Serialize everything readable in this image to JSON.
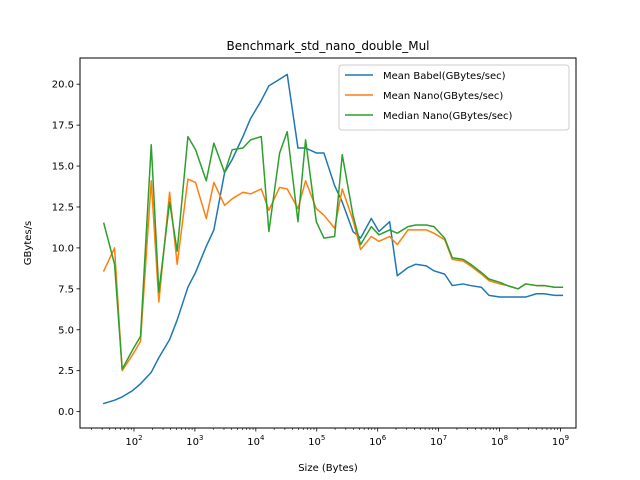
{
  "chart_data": {
    "type": "line",
    "title": "Benchmark_std_nano_double_Mul",
    "xlabel": "Size (Bytes)",
    "ylabel": "GBytes/s",
    "xscale": "log",
    "xlim": [
      13,
      1800000000
    ],
    "ylim": [
      -1.0,
      21.6
    ],
    "x_ticks": [
      {
        "value": 100,
        "base": "10",
        "exp": "2"
      },
      {
        "value": 1000,
        "base": "10",
        "exp": "3"
      },
      {
        "value": 10000,
        "base": "10",
        "exp": "4"
      },
      {
        "value": 100000,
        "base": "10",
        "exp": "5"
      },
      {
        "value": 1000000,
        "base": "10",
        "exp": "6"
      },
      {
        "value": 10000000,
        "base": "10",
        "exp": "7"
      },
      {
        "value": 100000000,
        "base": "10",
        "exp": "8"
      },
      {
        "value": 1000000000,
        "base": "10",
        "exp": "9"
      }
    ],
    "y_ticks": [
      "0.0",
      "2.5",
      "5.0",
      "7.5",
      "10.0",
      "12.5",
      "15.0",
      "17.5",
      "20.0"
    ],
    "grid": false,
    "legend_position": "top-right",
    "series": [
      {
        "name": "Mean Babel(GBytes/sec)",
        "color": "#1f77b4",
        "points": [
          [
            32,
            0.5
          ],
          [
            48,
            0.7
          ],
          [
            64,
            0.9
          ],
          [
            96,
            1.3
          ],
          [
            128,
            1.7
          ],
          [
            192,
            2.4
          ],
          [
            256,
            3.3
          ],
          [
            384,
            4.4
          ],
          [
            512,
            5.6
          ],
          [
            768,
            7.6
          ],
          [
            1024,
            8.5
          ],
          [
            1536,
            10.1
          ],
          [
            2048,
            11.1
          ],
          [
            3072,
            14.6
          ],
          [
            4096,
            15.4
          ],
          [
            6144,
            16.8
          ],
          [
            8192,
            17.9
          ],
          [
            12288,
            19.0
          ],
          [
            16384,
            19.9
          ],
          [
            24576,
            20.3
          ],
          [
            32768,
            20.6
          ],
          [
            49152,
            16.1
          ],
          [
            65536,
            16.1
          ],
          [
            98304,
            15.8
          ],
          [
            131072,
            15.8
          ],
          [
            196608,
            13.8
          ],
          [
            262144,
            12.8
          ],
          [
            393216,
            11.0
          ],
          [
            524288,
            10.6
          ],
          [
            786432,
            11.8
          ],
          [
            1048576,
            11.0
          ],
          [
            1572864,
            11.6
          ],
          [
            2097152,
            8.3
          ],
          [
            3145728,
            8.8
          ],
          [
            4194304,
            9.0
          ],
          [
            6291456,
            8.9
          ],
          [
            8388608,
            8.6
          ],
          [
            12582912,
            8.4
          ],
          [
            16777216,
            7.7
          ],
          [
            25165824,
            7.8
          ],
          [
            33554432,
            7.7
          ],
          [
            50331648,
            7.6
          ],
          [
            67108864,
            7.1
          ],
          [
            100663296,
            7.0
          ],
          [
            134217728,
            7.0
          ],
          [
            201326592,
            7.0
          ],
          [
            268435456,
            7.0
          ],
          [
            402653184,
            7.2
          ],
          [
            536870912,
            7.2
          ],
          [
            805306368,
            7.1
          ],
          [
            1073741824,
            7.1
          ]
        ]
      },
      {
        "name": "Mean Nano(GBytes/sec)",
        "color": "#ff7f0e",
        "points": [
          [
            32,
            8.6
          ],
          [
            48,
            10.0
          ],
          [
            64,
            2.5
          ],
          [
            96,
            3.5
          ],
          [
            128,
            4.3
          ],
          [
            192,
            14.1
          ],
          [
            256,
            6.7
          ],
          [
            384,
            13.4
          ],
          [
            512,
            9.0
          ],
          [
            768,
            14.2
          ],
          [
            1024,
            14.0
          ],
          [
            1536,
            11.8
          ],
          [
            2048,
            14.0
          ],
          [
            3072,
            12.6
          ],
          [
            4096,
            13.0
          ],
          [
            6144,
            13.4
          ],
          [
            8192,
            13.3
          ],
          [
            12288,
            13.6
          ],
          [
            16384,
            12.3
          ],
          [
            24576,
            13.7
          ],
          [
            32768,
            13.6
          ],
          [
            49152,
            12.4
          ],
          [
            65536,
            14.1
          ],
          [
            98304,
            12.4
          ],
          [
            131072,
            12.0
          ],
          [
            196608,
            11.2
          ],
          [
            262144,
            13.6
          ],
          [
            393216,
            11.7
          ],
          [
            524288,
            9.9
          ],
          [
            786432,
            10.7
          ],
          [
            1048576,
            10.4
          ],
          [
            1572864,
            10.7
          ],
          [
            2097152,
            10.2
          ],
          [
            3145728,
            11.1
          ],
          [
            4194304,
            11.1
          ],
          [
            6291456,
            11.1
          ],
          [
            8388608,
            10.9
          ],
          [
            12582912,
            10.5
          ],
          [
            16777216,
            9.3
          ],
          [
            25165824,
            9.2
          ],
          [
            33554432,
            8.9
          ],
          [
            50331648,
            8.4
          ],
          [
            67108864,
            8.0
          ],
          [
            100663296,
            7.8
          ],
          [
            134217728,
            7.7
          ],
          [
            201326592,
            7.5
          ],
          [
            268435456,
            7.8
          ],
          [
            402653184,
            7.7
          ],
          [
            536870912,
            7.7
          ],
          [
            805306368,
            7.6
          ],
          [
            1073741824,
            7.6
          ]
        ]
      },
      {
        "name": "Median Nano(GBytes/sec)",
        "color": "#2ca02c",
        "points": [
          [
            32,
            11.5
          ],
          [
            48,
            9.0
          ],
          [
            64,
            2.6
          ],
          [
            96,
            3.8
          ],
          [
            128,
            4.6
          ],
          [
            192,
            16.3
          ],
          [
            256,
            7.3
          ],
          [
            384,
            12.8
          ],
          [
            512,
            9.8
          ],
          [
            768,
            16.8
          ],
          [
            1024,
            16.0
          ],
          [
            1536,
            14.1
          ],
          [
            2048,
            16.4
          ],
          [
            3072,
            14.6
          ],
          [
            4096,
            16.0
          ],
          [
            6144,
            16.1
          ],
          [
            8192,
            16.6
          ],
          [
            12288,
            16.8
          ],
          [
            16384,
            11.0
          ],
          [
            24576,
            15.8
          ],
          [
            32768,
            17.1
          ],
          [
            49152,
            11.6
          ],
          [
            65536,
            16.6
          ],
          [
            98304,
            11.6
          ],
          [
            131072,
            10.6
          ],
          [
            196608,
            10.7
          ],
          [
            262144,
            15.7
          ],
          [
            393216,
            12.0
          ],
          [
            524288,
            10.2
          ],
          [
            786432,
            11.3
          ],
          [
            1048576,
            10.8
          ],
          [
            1572864,
            11.1
          ],
          [
            2097152,
            10.9
          ],
          [
            3145728,
            11.3
          ],
          [
            4194304,
            11.4
          ],
          [
            6291456,
            11.4
          ],
          [
            8388608,
            11.3
          ],
          [
            12582912,
            10.6
          ],
          [
            16777216,
            9.4
          ],
          [
            25165824,
            9.3
          ],
          [
            33554432,
            9.0
          ],
          [
            50331648,
            8.5
          ],
          [
            67108864,
            8.1
          ],
          [
            100663296,
            7.9
          ],
          [
            134217728,
            7.7
          ],
          [
            201326592,
            7.5
          ],
          [
            268435456,
            7.8
          ],
          [
            402653184,
            7.7
          ],
          [
            536870912,
            7.7
          ],
          [
            805306368,
            7.6
          ],
          [
            1073741824,
            7.6
          ]
        ]
      }
    ]
  }
}
